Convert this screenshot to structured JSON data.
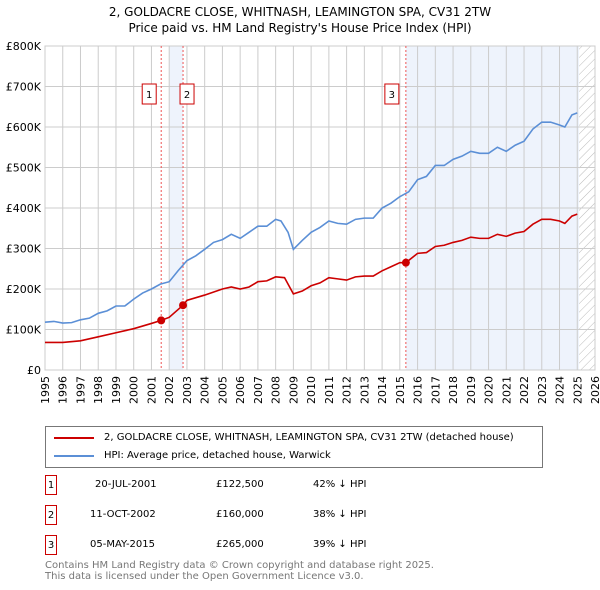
{
  "chart_data": {
    "type": "line",
    "title": "2, GOLDACRE CLOSE, WHITNASH, LEAMINGTON SPA, CV31 2TW",
    "subtitle": "Price paid vs. HM Land Registry's House Price Index (HPI)",
    "xlim": [
      1995,
      2026
    ],
    "ylim": [
      0,
      800000
    ],
    "x_ticks": [
      "1995",
      "1996",
      "1997",
      "1998",
      "1999",
      "2000",
      "2001",
      "2002",
      "2003",
      "2004",
      "2005",
      "2006",
      "2007",
      "2008",
      "2009",
      "2010",
      "2011",
      "2012",
      "2013",
      "2014",
      "2015",
      "2016",
      "2017",
      "2018",
      "2019",
      "2020",
      "2021",
      "2022",
      "2023",
      "2024",
      "2025",
      "2026"
    ],
    "y_ticks": [
      {
        "v": 0,
        "label": "£0"
      },
      {
        "v": 100000,
        "label": "£100K"
      },
      {
        "v": 200000,
        "label": "£200K"
      },
      {
        "v": 300000,
        "label": "£300K"
      },
      {
        "v": 400000,
        "label": "£400K"
      },
      {
        "v": 500000,
        "label": "£500K"
      },
      {
        "v": 600000,
        "label": "£600K"
      },
      {
        "v": 700000,
        "label": "£700K"
      },
      {
        "v": 800000,
        "label": "£800K"
      }
    ],
    "grid": true,
    "series": [
      {
        "name": "2, GOLDACRE CLOSE, WHITNASH, LEAMINGTON SPA, CV31 2TW (detached house)",
        "color": "#cc0000",
        "x": [
          1995,
          1996,
          1997,
          1998,
          1999,
          2000,
          2001,
          2001.55,
          2002,
          2002.78,
          2003,
          2004,
          2005,
          2005.5,
          2006,
          2006.5,
          2007,
          2007.5,
          2008,
          2008.5,
          2009,
          2009.5,
          2010,
          2010.5,
          2011,
          2011.5,
          2012,
          2012.5,
          2013,
          2013.5,
          2014,
          2014.5,
          2015,
          2015.34,
          2016,
          2016.5,
          2017,
          2017.5,
          2018,
          2018.5,
          2019,
          2019.5,
          2020,
          2020.5,
          2021,
          2021.5,
          2022,
          2022.5,
          2023,
          2023.5,
          2024,
          2024.3,
          2024.7,
          2025
        ],
        "y": [
          68000,
          68000,
          72000,
          82000,
          92000,
          102000,
          115000,
          122500,
          130000,
          160000,
          172000,
          185000,
          200000,
          205000,
          200000,
          205000,
          218000,
          220000,
          230000,
          228000,
          188000,
          195000,
          208000,
          215000,
          228000,
          225000,
          222000,
          230000,
          232000,
          232000,
          245000,
          255000,
          265000,
          265000,
          288000,
          290000,
          305000,
          308000,
          315000,
          320000,
          328000,
          325000,
          325000,
          335000,
          330000,
          338000,
          342000,
          360000,
          372000,
          372000,
          368000,
          362000,
          380000,
          385000
        ]
      },
      {
        "name": "HPI: Average price, detached house, Warwick",
        "color": "#5b8fd6",
        "x": [
          1995,
          1995.5,
          1996,
          1996.5,
          1997,
          1997.5,
          1998,
          1998.5,
          1999,
          1999.5,
          2000,
          2000.5,
          2001,
          2001.5,
          2002,
          2002.5,
          2003,
          2003.5,
          2004,
          2004.5,
          2005,
          2005.5,
          2006,
          2006.5,
          2007,
          2007.5,
          2008,
          2008.3,
          2008.7,
          2009,
          2009.5,
          2010,
          2010.5,
          2011,
          2011.5,
          2012,
          2012.5,
          2013,
          2013.5,
          2014,
          2014.5,
          2015,
          2015.5,
          2016,
          2016.5,
          2017,
          2017.5,
          2018,
          2018.5,
          2019,
          2019.5,
          2020,
          2020.5,
          2021,
          2021.5,
          2022,
          2022.5,
          2023,
          2023.5,
          2024,
          2024.3,
          2024.7,
          2025
        ],
        "y": [
          118000,
          120000,
          116000,
          117000,
          124000,
          128000,
          140000,
          146000,
          158000,
          158000,
          175000,
          190000,
          200000,
          212000,
          218000,
          245000,
          270000,
          282000,
          298000,
          315000,
          322000,
          335000,
          325000,
          340000,
          355000,
          355000,
          372000,
          368000,
          340000,
          298000,
          320000,
          340000,
          352000,
          368000,
          362000,
          360000,
          372000,
          375000,
          375000,
          400000,
          412000,
          428000,
          440000,
          470000,
          478000,
          505000,
          505000,
          520000,
          528000,
          540000,
          535000,
          535000,
          550000,
          540000,
          555000,
          565000,
          595000,
          612000,
          612000,
          605000,
          600000,
          630000,
          635000
        ]
      }
    ],
    "sales": [
      {
        "n": "1",
        "x": 2001.55,
        "price": 122500,
        "date": "20-JUL-2001",
        "price_label": "£122,500",
        "hpi": "42% ↓ HPI"
      },
      {
        "n": "2",
        "x": 2002.78,
        "price": 160000,
        "date": "11-OCT-2002",
        "price_label": "£160,000",
        "hpi": "38% ↓ HPI"
      },
      {
        "n": "3",
        "x": 2015.34,
        "price": 265000,
        "date": "05-MAY-2015",
        "price_label": "£265,000",
        "hpi": "39% ↓ HPI"
      }
    ],
    "shaded_ranges": [
      [
        2002,
        2002.78
      ],
      [
        2015.34,
        2025.1
      ]
    ],
    "hatched_range": [
      2025.1,
      2026
    ],
    "legend": "below"
  },
  "footer": {
    "line1": "Contains HM Land Registry data © Crown copyright and database right 2025.",
    "line2": "This data is licensed under the Open Government Licence v3.0."
  }
}
